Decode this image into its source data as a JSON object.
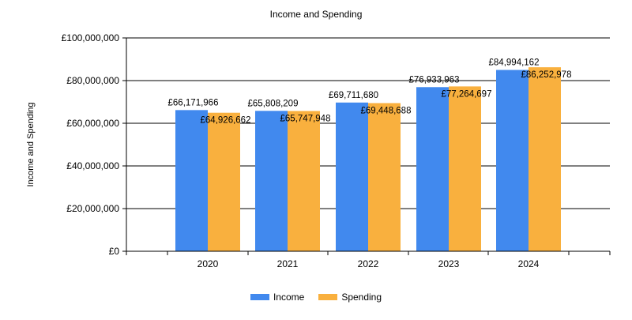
{
  "chart_data": {
    "type": "bar",
    "title": "Income and Spending",
    "xlabel": "",
    "ylabel": "Income and Spending",
    "categories": [
      "2020",
      "2021",
      "2022",
      "2023",
      "2024"
    ],
    "series": [
      {
        "name": "Income",
        "color": "#4189EE",
        "values": [
          66171966,
          65808209,
          69711680,
          76933963,
          84994162
        ],
        "labels": [
          "£66,171,966",
          "£65,808,209",
          "£69,711,680",
          "£76,933,963",
          "£84,994,162"
        ]
      },
      {
        "name": "Spending",
        "color": "#F9B03E",
        "values": [
          64926662,
          65747948,
          69448688,
          77264697,
          86252978
        ],
        "labels": [
          "£64,926,662",
          "£65,747,948",
          "£69,448,688",
          "£77,264,697",
          "£86,252,978"
        ]
      }
    ],
    "ylim": [
      0,
      100000000
    ],
    "yticks": [
      0,
      20000000,
      40000000,
      60000000,
      80000000,
      100000000
    ],
    "ytick_labels": [
      "£0",
      "£20,000,000",
      "£40,000,000",
      "£60,000,000",
      "£80,000,000",
      "£100,000,000"
    ],
    "grid": true,
    "legend_position": "bottom-center"
  }
}
